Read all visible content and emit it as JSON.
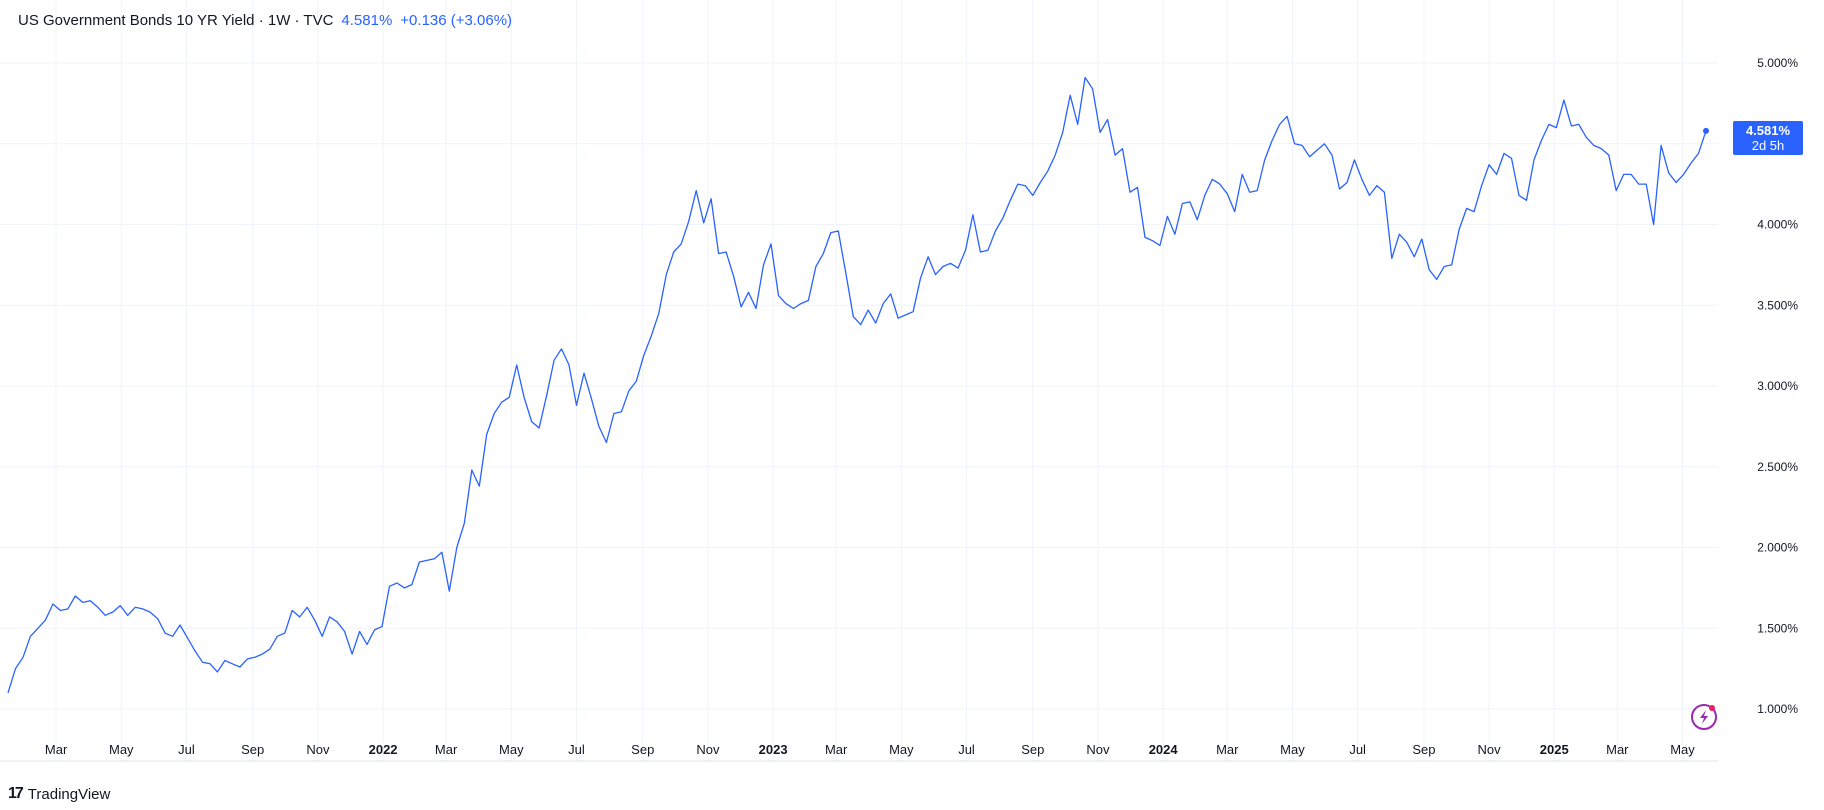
{
  "header": {
    "title": "US Government Bonds 10 YR Yield · 1W · TVC",
    "last_value": "4.581%",
    "change": "+0.136 (+3.06%)"
  },
  "price_label": {
    "value": "4.581%",
    "countdown": "2d 5h"
  },
  "footer": {
    "logo_mark": "17",
    "brand": "TradingView"
  },
  "colors": {
    "line": "#2962ff",
    "label_bg": "#2962ff",
    "grid": "#f0f3fa",
    "axis_text": "#131722",
    "flash_icon": "#9c27b0"
  },
  "chart_data": {
    "type": "line",
    "title": "US Government Bonds 10 YR Yield · 1W · TVC",
    "xlabel": "",
    "ylabel": "",
    "ylim": [
      0.75,
      5.25
    ],
    "y_ticks": [
      "1.000%",
      "1.500%",
      "2.000%",
      "2.500%",
      "3.000%",
      "3.500%",
      "4.000%",
      "4.500%",
      "5.000%"
    ],
    "x_ticks": [
      {
        "label": "Mar",
        "bold": false
      },
      {
        "label": "May",
        "bold": false
      },
      {
        "label": "Jul",
        "bold": false
      },
      {
        "label": "Sep",
        "bold": false
      },
      {
        "label": "Nov",
        "bold": false
      },
      {
        "label": "2022",
        "bold": true
      },
      {
        "label": "Mar",
        "bold": false
      },
      {
        "label": "May",
        "bold": false
      },
      {
        "label": "Jul",
        "bold": false
      },
      {
        "label": "Sep",
        "bold": false
      },
      {
        "label": "Nov",
        "bold": false
      },
      {
        "label": "2023",
        "bold": true
      },
      {
        "label": "Mar",
        "bold": false
      },
      {
        "label": "May",
        "bold": false
      },
      {
        "label": "Jul",
        "bold": false
      },
      {
        "label": "Sep",
        "bold": false
      },
      {
        "label": "Nov",
        "bold": false
      },
      {
        "label": "2024",
        "bold": true
      },
      {
        "label": "Mar",
        "bold": false
      },
      {
        "label": "May",
        "bold": false
      },
      {
        "label": "Jul",
        "bold": false
      },
      {
        "label": "Sep",
        "bold": false
      },
      {
        "label": "Nov",
        "bold": false
      },
      {
        "label": "2025",
        "bold": true
      },
      {
        "label": "Mar",
        "bold": false
      },
      {
        "label": "May",
        "bold": false
      }
    ],
    "x_tick_dates": [
      "2021-03-01",
      "2021-05-01",
      "2021-07-01",
      "2021-09-01",
      "2021-11-01",
      "2022-01-01",
      "2022-03-01",
      "2022-05-01",
      "2022-07-01",
      "2022-09-01",
      "2022-11-01",
      "2023-01-01",
      "2023-03-01",
      "2023-05-01",
      "2023-07-01",
      "2023-09-01",
      "2023-11-01",
      "2024-01-01",
      "2024-03-01",
      "2024-05-01",
      "2024-07-01",
      "2024-09-01",
      "2024-11-01",
      "2025-01-01",
      "2025-03-01",
      "2025-05-01"
    ],
    "series": [
      {
        "values": [
          [
            "2021-01-15",
            1.1
          ],
          [
            "2021-01-22",
            1.25
          ],
          [
            "2021-01-29",
            1.32
          ],
          [
            "2021-02-05",
            1.45
          ],
          [
            "2021-02-12",
            1.5
          ],
          [
            "2021-02-19",
            1.55
          ],
          [
            "2021-02-26",
            1.65
          ],
          [
            "2021-03-05",
            1.61
          ],
          [
            "2021-03-12",
            1.62
          ],
          [
            "2021-03-19",
            1.7
          ],
          [
            "2021-03-26",
            1.66
          ],
          [
            "2021-04-02",
            1.67
          ],
          [
            "2021-04-09",
            1.63
          ],
          [
            "2021-04-16",
            1.58
          ],
          [
            "2021-04-23",
            1.6
          ],
          [
            "2021-04-30",
            1.64
          ],
          [
            "2021-05-07",
            1.58
          ],
          [
            "2021-05-14",
            1.63
          ],
          [
            "2021-05-21",
            1.62
          ],
          [
            "2021-05-28",
            1.6
          ],
          [
            "2021-06-04",
            1.56
          ],
          [
            "2021-06-11",
            1.47
          ],
          [
            "2021-06-18",
            1.45
          ],
          [
            "2021-06-25",
            1.52
          ],
          [
            "2021-07-02",
            1.44
          ],
          [
            "2021-07-09",
            1.36
          ],
          [
            "2021-07-16",
            1.29
          ],
          [
            "2021-07-23",
            1.28
          ],
          [
            "2021-07-30",
            1.23
          ],
          [
            "2021-08-06",
            1.3
          ],
          [
            "2021-08-13",
            1.28
          ],
          [
            "2021-08-20",
            1.26
          ],
          [
            "2021-08-27",
            1.31
          ],
          [
            "2021-09-03",
            1.32
          ],
          [
            "2021-09-10",
            1.34
          ],
          [
            "2021-09-17",
            1.37
          ],
          [
            "2021-09-24",
            1.45
          ],
          [
            "2021-10-01",
            1.47
          ],
          [
            "2021-10-08",
            1.61
          ],
          [
            "2021-10-15",
            1.57
          ],
          [
            "2021-10-22",
            1.63
          ],
          [
            "2021-10-29",
            1.55
          ],
          [
            "2021-11-05",
            1.45
          ],
          [
            "2021-11-12",
            1.57
          ],
          [
            "2021-11-19",
            1.54
          ],
          [
            "2021-11-26",
            1.48
          ],
          [
            "2021-12-03",
            1.34
          ],
          [
            "2021-12-10",
            1.48
          ],
          [
            "2021-12-17",
            1.4
          ],
          [
            "2021-12-24",
            1.49
          ],
          [
            "2021-12-31",
            1.51
          ],
          [
            "2022-01-07",
            1.76
          ],
          [
            "2022-01-14",
            1.78
          ],
          [
            "2022-01-21",
            1.75
          ],
          [
            "2022-01-28",
            1.77
          ],
          [
            "2022-02-04",
            1.91
          ],
          [
            "2022-02-11",
            1.92
          ],
          [
            "2022-02-18",
            1.93
          ],
          [
            "2022-02-25",
            1.97
          ],
          [
            "2022-03-04",
            1.73
          ],
          [
            "2022-03-11",
            2.0
          ],
          [
            "2022-03-18",
            2.15
          ],
          [
            "2022-03-25",
            2.48
          ],
          [
            "2022-04-01",
            2.38
          ],
          [
            "2022-04-08",
            2.7
          ],
          [
            "2022-04-15",
            2.83
          ],
          [
            "2022-04-22",
            2.9
          ],
          [
            "2022-04-29",
            2.93
          ],
          [
            "2022-05-06",
            3.13
          ],
          [
            "2022-05-13",
            2.93
          ],
          [
            "2022-05-20",
            2.78
          ],
          [
            "2022-05-27",
            2.74
          ],
          [
            "2022-06-03",
            2.94
          ],
          [
            "2022-06-10",
            3.16
          ],
          [
            "2022-06-17",
            3.23
          ],
          [
            "2022-06-24",
            3.13
          ],
          [
            "2022-07-01",
            2.88
          ],
          [
            "2022-07-08",
            3.08
          ],
          [
            "2022-07-15",
            2.92
          ],
          [
            "2022-07-22",
            2.75
          ],
          [
            "2022-07-29",
            2.65
          ],
          [
            "2022-08-05",
            2.83
          ],
          [
            "2022-08-12",
            2.84
          ],
          [
            "2022-08-19",
            2.97
          ],
          [
            "2022-08-26",
            3.03
          ],
          [
            "2022-09-02",
            3.19
          ],
          [
            "2022-09-09",
            3.31
          ],
          [
            "2022-09-16",
            3.45
          ],
          [
            "2022-09-23",
            3.69
          ],
          [
            "2022-09-30",
            3.83
          ],
          [
            "2022-10-07",
            3.88
          ],
          [
            "2022-10-14",
            4.02
          ],
          [
            "2022-10-21",
            4.21
          ],
          [
            "2022-10-28",
            4.01
          ],
          [
            "2022-11-04",
            4.16
          ],
          [
            "2022-11-11",
            3.82
          ],
          [
            "2022-11-18",
            3.83
          ],
          [
            "2022-11-25",
            3.68
          ],
          [
            "2022-12-02",
            3.49
          ],
          [
            "2022-12-09",
            3.58
          ],
          [
            "2022-12-16",
            3.48
          ],
          [
            "2022-12-23",
            3.75
          ],
          [
            "2022-12-30",
            3.88
          ],
          [
            "2023-01-06",
            3.56
          ],
          [
            "2023-01-13",
            3.51
          ],
          [
            "2023-01-20",
            3.48
          ],
          [
            "2023-01-27",
            3.51
          ],
          [
            "2023-02-03",
            3.53
          ],
          [
            "2023-02-10",
            3.74
          ],
          [
            "2023-02-17",
            3.82
          ],
          [
            "2023-02-24",
            3.95
          ],
          [
            "2023-03-03",
            3.96
          ],
          [
            "2023-03-10",
            3.7
          ],
          [
            "2023-03-17",
            3.43
          ],
          [
            "2023-03-24",
            3.38
          ],
          [
            "2023-03-31",
            3.47
          ],
          [
            "2023-04-07",
            3.39
          ],
          [
            "2023-04-14",
            3.51
          ],
          [
            "2023-04-21",
            3.57
          ],
          [
            "2023-04-28",
            3.42
          ],
          [
            "2023-05-05",
            3.44
          ],
          [
            "2023-05-12",
            3.46
          ],
          [
            "2023-05-19",
            3.67
          ],
          [
            "2023-05-26",
            3.8
          ],
          [
            "2023-06-02",
            3.69
          ],
          [
            "2023-06-09",
            3.74
          ],
          [
            "2023-06-16",
            3.76
          ],
          [
            "2023-06-23",
            3.73
          ],
          [
            "2023-06-30",
            3.84
          ],
          [
            "2023-07-07",
            4.06
          ],
          [
            "2023-07-14",
            3.83
          ],
          [
            "2023-07-21",
            3.84
          ],
          [
            "2023-07-28",
            3.96
          ],
          [
            "2023-08-04",
            4.04
          ],
          [
            "2023-08-11",
            4.15
          ],
          [
            "2023-08-18",
            4.25
          ],
          [
            "2023-08-25",
            4.24
          ],
          [
            "2023-09-01",
            4.18
          ],
          [
            "2023-09-08",
            4.26
          ],
          [
            "2023-09-15",
            4.33
          ],
          [
            "2023-09-22",
            4.43
          ],
          [
            "2023-09-29",
            4.57
          ],
          [
            "2023-10-06",
            4.8
          ],
          [
            "2023-10-13",
            4.62
          ],
          [
            "2023-10-20",
            4.91
          ],
          [
            "2023-10-27",
            4.84
          ],
          [
            "2023-11-03",
            4.57
          ],
          [
            "2023-11-10",
            4.65
          ],
          [
            "2023-11-17",
            4.43
          ],
          [
            "2023-11-24",
            4.47
          ],
          [
            "2023-12-01",
            4.2
          ],
          [
            "2023-12-08",
            4.23
          ],
          [
            "2023-12-15",
            3.92
          ],
          [
            "2023-12-22",
            3.9
          ],
          [
            "2023-12-29",
            3.87
          ],
          [
            "2024-01-05",
            4.05
          ],
          [
            "2024-01-12",
            3.94
          ],
          [
            "2024-01-19",
            4.13
          ],
          [
            "2024-01-26",
            4.14
          ],
          [
            "2024-02-02",
            4.03
          ],
          [
            "2024-02-09",
            4.18
          ],
          [
            "2024-02-16",
            4.28
          ],
          [
            "2024-02-23",
            4.25
          ],
          [
            "2024-03-01",
            4.19
          ],
          [
            "2024-03-08",
            4.08
          ],
          [
            "2024-03-15",
            4.31
          ],
          [
            "2024-03-22",
            4.2
          ],
          [
            "2024-03-29",
            4.21
          ],
          [
            "2024-04-05",
            4.4
          ],
          [
            "2024-04-12",
            4.52
          ],
          [
            "2024-04-19",
            4.62
          ],
          [
            "2024-04-26",
            4.67
          ],
          [
            "2024-05-03",
            4.5
          ],
          [
            "2024-05-10",
            4.49
          ],
          [
            "2024-05-17",
            4.42
          ],
          [
            "2024-05-24",
            4.46
          ],
          [
            "2024-05-31",
            4.5
          ],
          [
            "2024-06-07",
            4.43
          ],
          [
            "2024-06-14",
            4.22
          ],
          [
            "2024-06-21",
            4.26
          ],
          [
            "2024-06-28",
            4.4
          ],
          [
            "2024-07-05",
            4.28
          ],
          [
            "2024-07-12",
            4.18
          ],
          [
            "2024-07-19",
            4.24
          ],
          [
            "2024-07-26",
            4.2
          ],
          [
            "2024-08-02",
            3.79
          ],
          [
            "2024-08-09",
            3.94
          ],
          [
            "2024-08-16",
            3.89
          ],
          [
            "2024-08-23",
            3.8
          ],
          [
            "2024-08-30",
            3.91
          ],
          [
            "2024-09-06",
            3.72
          ],
          [
            "2024-09-13",
            3.66
          ],
          [
            "2024-09-20",
            3.74
          ],
          [
            "2024-09-27",
            3.75
          ],
          [
            "2024-10-04",
            3.97
          ],
          [
            "2024-10-11",
            4.1
          ],
          [
            "2024-10-18",
            4.08
          ],
          [
            "2024-10-25",
            4.24
          ],
          [
            "2024-11-01",
            4.37
          ],
          [
            "2024-11-08",
            4.31
          ],
          [
            "2024-11-15",
            4.44
          ],
          [
            "2024-11-22",
            4.41
          ],
          [
            "2024-11-29",
            4.18
          ],
          [
            "2024-12-06",
            4.15
          ],
          [
            "2024-12-13",
            4.4
          ],
          [
            "2024-12-20",
            4.52
          ],
          [
            "2024-12-27",
            4.62
          ],
          [
            "2025-01-03",
            4.6
          ],
          [
            "2025-01-10",
            4.77
          ],
          [
            "2025-01-17",
            4.61
          ],
          [
            "2025-01-24",
            4.62
          ],
          [
            "2025-01-31",
            4.54
          ],
          [
            "2025-02-07",
            4.49
          ],
          [
            "2025-02-14",
            4.47
          ],
          [
            "2025-02-21",
            4.43
          ],
          [
            "2025-02-28",
            4.21
          ],
          [
            "2025-03-07",
            4.31
          ],
          [
            "2025-03-14",
            4.31
          ],
          [
            "2025-03-21",
            4.25
          ],
          [
            "2025-03-28",
            4.25
          ],
          [
            "2025-04-04",
            4.0
          ],
          [
            "2025-04-11",
            4.49
          ],
          [
            "2025-04-18",
            4.32
          ],
          [
            "2025-04-25",
            4.26
          ],
          [
            "2025-05-02",
            4.31
          ],
          [
            "2025-05-09",
            4.38
          ],
          [
            "2025-05-16",
            4.44
          ],
          [
            "2025-05-23",
            4.58
          ]
        ]
      }
    ]
  }
}
